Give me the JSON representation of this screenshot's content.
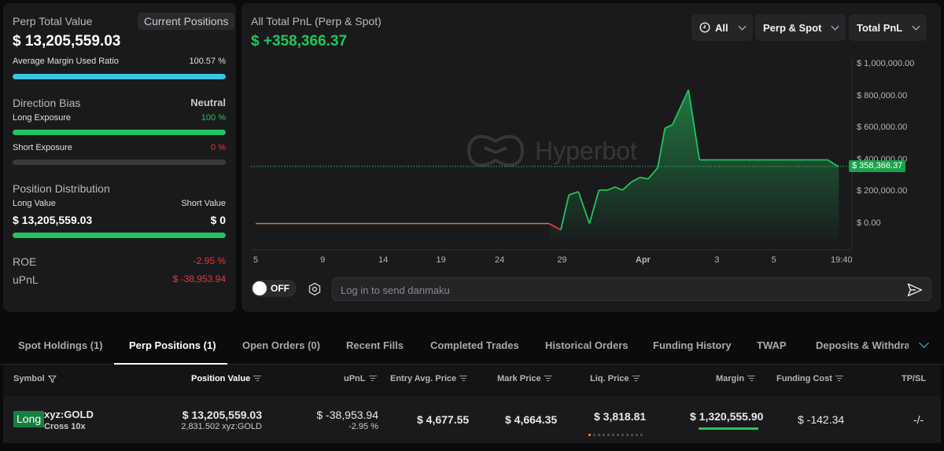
{
  "summary": {
    "perp_total_value_label": "Perp Total Value",
    "current_positions_btn": "Current Positions",
    "perp_total_value": "$ 13,205,559.03",
    "avg_margin_label": "Average Margin Used Ratio",
    "avg_margin_value": "100.57 %",
    "avg_margin_fill": 1.0,
    "direction_bias_label": "Direction Bias",
    "direction_bias_value": "Neutral",
    "long_exposure_label": "Long Exposure",
    "long_exposure_value": "100 %",
    "long_exposure_fill": 1.0,
    "short_exposure_label": "Short Exposure",
    "short_exposure_value": "0 %",
    "short_exposure_fill": 0,
    "position_dist_label": "Position Distribution",
    "long_value_label": "Long Value",
    "short_value_label": "Short Value",
    "long_value": "$ 13,205,559.03",
    "short_value": "$ 0",
    "dist_long_fill": 1.0,
    "roe_label": "ROE",
    "roe_value": "-2.95 %",
    "upnl_label": "uPnL",
    "upnl_value": "$ -38,953.94"
  },
  "chart_panel": {
    "title": "All Total PnL (Perp & Spot)",
    "total": "$ +358,366.37",
    "filters": [
      "All",
      "Perp & Spot",
      "Total PnL"
    ],
    "watermark": "Hyperbot",
    "current_label": "$ 358,366.37",
    "toggle_label": "OFF",
    "danmaku_placeholder": "Log in to send danmaku"
  },
  "chart_data": {
    "type": "area",
    "x_ticks": [
      "5",
      "9",
      "14",
      "19",
      "24",
      "29",
      "Apr",
      "3",
      "5",
      "19:40"
    ],
    "y_ticks": [
      "$ 1,000,000.00",
      "$ 800,000.00",
      "$ 600,000.00",
      "$ 400,000.00",
      "$ 200,000.00",
      "$ 0.00"
    ],
    "ylim": [
      -100000,
      1000000
    ],
    "current_value": 358366.37,
    "points": [
      [
        0,
        0
      ],
      [
        40,
        0
      ],
      [
        40.8,
        -20000
      ],
      [
        41.6,
        -40000
      ],
      [
        42.7,
        180000
      ],
      [
        44,
        200000
      ],
      [
        45.5,
        0
      ],
      [
        46.8,
        210000
      ],
      [
        48,
        210000
      ],
      [
        49,
        230000
      ],
      [
        50,
        210000
      ],
      [
        51.2,
        260000
      ],
      [
        52.4,
        290000
      ],
      [
        53.5,
        280000
      ],
      [
        54.8,
        350000
      ],
      [
        55.8,
        600000
      ],
      [
        56.8,
        620000
      ],
      [
        59,
        840000
      ],
      [
        60.5,
        400000
      ],
      [
        78,
        400000
      ],
      [
        79,
        370000
      ],
      [
        79.5,
        358366
      ]
    ],
    "x_tick_positions": [
      0,
      7.3,
      13.9,
      20.2,
      26.6,
      33.4,
      42.2,
      50.3,
      56.5,
      64.0
    ]
  },
  "tabs": [
    "Spot Holdings (1)",
    "Perp Positions (1)",
    "Open Orders (0)",
    "Recent Fills",
    "Completed Trades",
    "Historical Orders",
    "Funding History",
    "TWAP",
    "Deposits & Withdraw"
  ],
  "table": {
    "headers": {
      "symbol": "Symbol",
      "position_value": "Position Value",
      "upnl": "uPnL",
      "entry": "Entry Avg. Price",
      "mark": "Mark Price",
      "liq": "Liq. Price",
      "margin": "Margin",
      "funding": "Funding Cost",
      "tpsl": "TP/SL"
    },
    "row": {
      "side": "Long",
      "symbol": "xyz:GOLD",
      "leverage": "Cross 10x",
      "position_value": "$ 13,205,559.03",
      "position_size": "2,831.502 xyz:GOLD",
      "upnl": "$ -38,953.94",
      "upnl_pct": "-2.95 %",
      "entry": "$ 4,677.55",
      "mark": "$ 4,664.35",
      "liq": "$ 3,818.81",
      "margin": "$ 1,320,555.90",
      "funding": "$ -142.34",
      "tpsl": "-/-"
    }
  },
  "colors": {
    "green": "#22c55e",
    "red": "#e03a3a",
    "cyan": "#3ec6e0"
  }
}
